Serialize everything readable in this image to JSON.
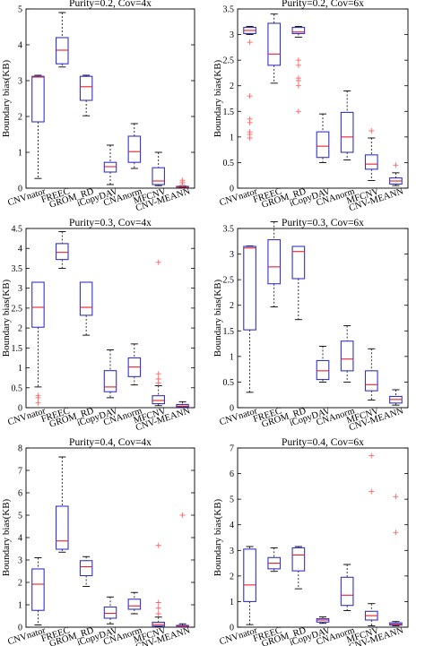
{
  "figure": {
    "categories": [
      "CNVnator",
      "FREEC",
      "GROM_RD",
      "iCopyDAV",
      "CNAnorm",
      "MFCNV",
      "CNV-MEANN"
    ],
    "colors": {
      "box": "#3333cc",
      "median": "#e8202a",
      "outlier": "#ff6666",
      "whisker": "#000000"
    }
  },
  "chart_data": [
    {
      "type": "box",
      "title": "Purity=0.2, Cov=4x",
      "ylabel": "Boundary bias(KB)",
      "ylim": [
        0,
        5
      ],
      "yticks": [
        0,
        1,
        2,
        3,
        4,
        5
      ],
      "boxes": [
        {
          "category": "CNVnator",
          "whisker_low": 0.27,
          "q1": 1.85,
          "median": 3.1,
          "q3": 3.12,
          "whisker_high": 3.15,
          "outliers": []
        },
        {
          "category": "FREEC",
          "whisker_low": 3.38,
          "q1": 3.47,
          "median": 3.85,
          "q3": 4.2,
          "whisker_high": 4.9,
          "outliers": []
        },
        {
          "category": "GROM_RD",
          "whisker_low": 2.02,
          "q1": 2.45,
          "median": 2.83,
          "q3": 3.12,
          "whisker_high": 3.15,
          "outliers": []
        },
        {
          "category": "iCopyDAV",
          "whisker_low": 0.1,
          "q1": 0.45,
          "median": 0.6,
          "q3": 0.72,
          "whisker_high": 1.2,
          "outliers": []
        },
        {
          "category": "CNAnorm",
          "whisker_low": 0.55,
          "q1": 0.72,
          "median": 1.02,
          "q3": 1.45,
          "whisker_high": 1.8,
          "outliers": []
        },
        {
          "category": "MFCNV",
          "whisker_low": 0.07,
          "q1": 0.1,
          "median": 0.2,
          "q3": 0.57,
          "whisker_high": 1.0,
          "outliers": []
        },
        {
          "category": "CNV-MEANN",
          "whisker_low": 0.02,
          "q1": 0.03,
          "median": 0.04,
          "q3": 0.05,
          "whisker_high": 0.06,
          "outliers": [
            0.12,
            0.17,
            0.22
          ]
        }
      ]
    },
    {
      "type": "box",
      "title": "Purity=0.2, Cov=6x",
      "ylabel": "Boundary bias(KB)",
      "ylim": [
        0,
        3.5
      ],
      "yticks": [
        0,
        0.5,
        1,
        1.5,
        2,
        2.5,
        3,
        3.5
      ],
      "boxes": [
        {
          "category": "CNVnator",
          "whisker_low": 3.0,
          "q1": 3.02,
          "median": 3.08,
          "q3": 3.14,
          "whisker_high": 3.16,
          "outliers": [
            2.85,
            1.8,
            1.35,
            1.28,
            1.1,
            1.05,
            0.98
          ]
        },
        {
          "category": "FREEC",
          "whisker_low": 2.05,
          "q1": 2.4,
          "median": 2.62,
          "q3": 3.22,
          "whisker_high": 3.4,
          "outliers": []
        },
        {
          "category": "GROM_RD",
          "whisker_low": 2.95,
          "q1": 3.02,
          "median": 3.05,
          "q3": 3.14,
          "whisker_high": 3.16,
          "outliers": [
            2.5,
            2.4,
            2.15,
            2.1,
            2.0,
            1.5
          ]
        },
        {
          "category": "iCopyDAV",
          "whisker_low": 0.5,
          "q1": 0.6,
          "median": 0.82,
          "q3": 1.1,
          "whisker_high": 1.45,
          "outliers": []
        },
        {
          "category": "CNAnorm",
          "whisker_low": 0.55,
          "q1": 0.7,
          "median": 1.0,
          "q3": 1.48,
          "whisker_high": 1.9,
          "outliers": []
        },
        {
          "category": "MFCNV",
          "whisker_low": 0.15,
          "q1": 0.37,
          "median": 0.47,
          "q3": 0.65,
          "whisker_high": 0.98,
          "outliers": [
            1.12
          ]
        },
        {
          "category": "CNV-MEANN",
          "whisker_low": 0.05,
          "q1": 0.08,
          "median": 0.14,
          "q3": 0.2,
          "whisker_high": 0.3,
          "outliers": [
            0.45
          ]
        }
      ]
    },
    {
      "type": "box",
      "title": "Purity=0.3, Cov=4x",
      "ylabel": "Boundary bias(KB)",
      "ylim": [
        0,
        4.5
      ],
      "yticks": [
        0,
        0.5,
        1,
        1.5,
        2,
        2.5,
        3,
        3.5,
        4,
        4.5
      ],
      "boxes": [
        {
          "category": "CNVnator",
          "whisker_low": 0.52,
          "q1": 2.02,
          "median": 2.52,
          "q3": 3.15,
          "whisker_high": 3.15,
          "outliers": [
            0.3,
            0.25,
            0.12
          ]
        },
        {
          "category": "FREEC",
          "whisker_low": 3.5,
          "q1": 3.72,
          "median": 3.9,
          "q3": 4.12,
          "whisker_high": 4.42,
          "outliers": []
        },
        {
          "category": "GROM_RD",
          "whisker_low": 1.82,
          "q1": 2.32,
          "median": 2.52,
          "q3": 3.15,
          "whisker_high": 3.15,
          "outliers": []
        },
        {
          "category": "iCopyDAV",
          "whisker_low": 0.25,
          "q1": 0.4,
          "median": 0.52,
          "q3": 0.93,
          "whisker_high": 1.45,
          "outliers": []
        },
        {
          "category": "CNAnorm",
          "whisker_low": 0.57,
          "q1": 0.78,
          "median": 1.02,
          "q3": 1.25,
          "whisker_high": 1.6,
          "outliers": []
        },
        {
          "category": "MFCNV",
          "whisker_low": 0.05,
          "q1": 0.1,
          "median": 0.18,
          "q3": 0.3,
          "whisker_high": 0.55,
          "outliers": [
            3.65,
            0.85,
            0.72,
            0.62
          ]
        },
        {
          "category": "CNV-MEANN",
          "whisker_low": 0.01,
          "q1": 0.02,
          "median": 0.04,
          "q3": 0.08,
          "whisker_high": 0.15,
          "outliers": []
        }
      ]
    },
    {
      "type": "box",
      "title": "Purity=0.3, Cov=6x",
      "ylabel": "Boundary bias(KB)",
      "ylim": [
        0,
        3.5
      ],
      "yticks": [
        0,
        0.5,
        1,
        1.5,
        2,
        2.5,
        3,
        3.5
      ],
      "boxes": [
        {
          "category": "CNVnator",
          "whisker_low": 0.3,
          "q1": 1.52,
          "median": 3.12,
          "q3": 3.15,
          "whisker_high": 3.16,
          "outliers": []
        },
        {
          "category": "FREEC",
          "whisker_low": 1.97,
          "q1": 2.42,
          "median": 2.75,
          "q3": 3.28,
          "whisker_high": 3.63,
          "outliers": []
        },
        {
          "category": "GROM_RD",
          "whisker_low": 1.72,
          "q1": 2.52,
          "median": 3.05,
          "q3": 3.15,
          "whisker_high": 3.15,
          "outliers": []
        },
        {
          "category": "iCopyDAV",
          "whisker_low": 0.5,
          "q1": 0.55,
          "median": 0.72,
          "q3": 0.92,
          "whisker_high": 1.2,
          "outliers": []
        },
        {
          "category": "CNAnorm",
          "whisker_low": 0.5,
          "q1": 0.72,
          "median": 0.95,
          "q3": 1.3,
          "whisker_high": 1.6,
          "outliers": []
        },
        {
          "category": "MFCNV",
          "whisker_low": 0.15,
          "q1": 0.33,
          "median": 0.45,
          "q3": 0.72,
          "whisker_high": 1.15,
          "outliers": []
        },
        {
          "category": "CNV-MEANN",
          "whisker_low": 0.05,
          "q1": 0.09,
          "median": 0.16,
          "q3": 0.22,
          "whisker_high": 0.35,
          "outliers": []
        }
      ]
    },
    {
      "type": "box",
      "title": "Purity=0.4, Cov=4x",
      "ylabel": "Boundary bias(KB)",
      "ylim": [
        0,
        8
      ],
      "yticks": [
        0,
        1,
        2,
        3,
        4,
        5,
        6,
        7,
        8
      ],
      "boxes": [
        {
          "category": "CNVnator",
          "whisker_low": 0.1,
          "q1": 0.75,
          "median": 1.92,
          "q3": 2.6,
          "whisker_high": 3.1,
          "outliers": []
        },
        {
          "category": "FREEC",
          "whisker_low": 3.35,
          "q1": 3.48,
          "median": 3.85,
          "q3": 5.4,
          "whisker_high": 7.6,
          "outliers": []
        },
        {
          "category": "GROM_RD",
          "whisker_low": 1.82,
          "q1": 2.3,
          "median": 2.7,
          "q3": 2.97,
          "whisker_high": 3.15,
          "outliers": []
        },
        {
          "category": "iCopyDAV",
          "whisker_low": 0.15,
          "q1": 0.4,
          "median": 0.62,
          "q3": 0.9,
          "whisker_high": 1.35,
          "outliers": []
        },
        {
          "category": "CNAnorm",
          "whisker_low": 0.6,
          "q1": 0.8,
          "median": 0.95,
          "q3": 1.25,
          "whisker_high": 1.55,
          "outliers": []
        },
        {
          "category": "MFCNV",
          "whisker_low": 0.02,
          "q1": 0.05,
          "median": 0.12,
          "q3": 0.22,
          "whisker_high": 0.45,
          "outliers": [
            3.65,
            1.1,
            0.85,
            0.6
          ]
        },
        {
          "category": "CNV-MEANN",
          "whisker_low": 0.01,
          "q1": 0.02,
          "median": 0.04,
          "q3": 0.08,
          "whisker_high": 0.15,
          "outliers": [
            5.0
          ]
        }
      ]
    },
    {
      "type": "box",
      "title": "Purity=0.4, Cov=6x",
      "ylabel": "Boundary bias(KB)",
      "ylim": [
        0,
        7
      ],
      "yticks": [
        0,
        1,
        2,
        3,
        4,
        5,
        6,
        7
      ],
      "boxes": [
        {
          "category": "CNVnator",
          "whisker_low": 0.1,
          "q1": 1.0,
          "median": 1.65,
          "q3": 3.05,
          "whisker_high": 3.15,
          "outliers": []
        },
        {
          "category": "FREEC",
          "whisker_low": 2.18,
          "q1": 2.28,
          "median": 2.5,
          "q3": 2.72,
          "whisker_high": 3.1,
          "outliers": []
        },
        {
          "category": "GROM_RD",
          "whisker_low": 1.5,
          "q1": 2.2,
          "median": 2.82,
          "q3": 3.1,
          "whisker_high": 3.15,
          "outliers": []
        },
        {
          "category": "iCopyDAV",
          "whisker_low": 0.15,
          "q1": 0.2,
          "median": 0.28,
          "q3": 0.33,
          "whisker_high": 0.4,
          "outliers": []
        },
        {
          "category": "CNAnorm",
          "whisker_low": 0.65,
          "q1": 0.85,
          "median": 1.25,
          "q3": 1.95,
          "whisker_high": 2.45,
          "outliers": []
        },
        {
          "category": "MFCNV",
          "whisker_low": 0.05,
          "q1": 0.28,
          "median": 0.45,
          "q3": 0.62,
          "whisker_high": 0.92,
          "outliers": [
            6.7,
            5.3
          ]
        },
        {
          "category": "CNV-MEANN",
          "whisker_low": 0.05,
          "q1": 0.08,
          "median": 0.12,
          "q3": 0.17,
          "whisker_high": 0.22,
          "outliers": [
            5.1,
            3.7
          ]
        }
      ]
    }
  ]
}
